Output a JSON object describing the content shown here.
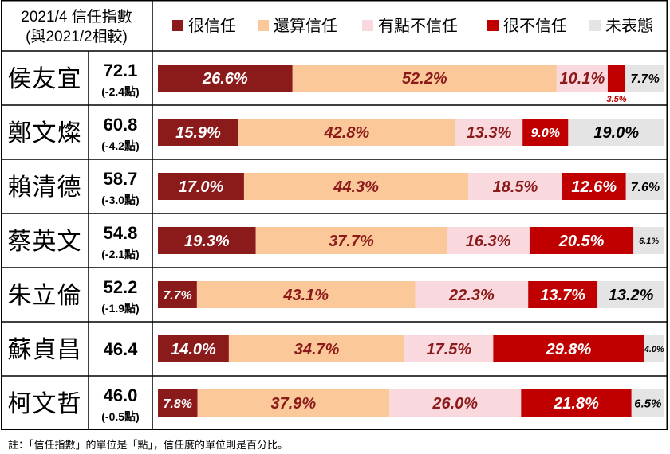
{
  "chart_data": {
    "type": "bar",
    "stacked": "100%",
    "orientation": "horizontal",
    "header": {
      "title_line1": "2021/4 信任指數",
      "title_line2": "(與2021/2相較)"
    },
    "legend": [
      {
        "name": "很信任",
        "color": "#8b1a1a"
      },
      {
        "name": "還算信任",
        "color": "#fbc999"
      },
      {
        "name": "有點不信任",
        "color": "#f9d9dd"
      },
      {
        "name": "很不信任",
        "color": "#c00000"
      },
      {
        "name": "未表態",
        "color": "#e4e4e4"
      }
    ],
    "legend_position": "top",
    "categories": [
      "侯友宜",
      "鄭文燦",
      "賴清德",
      "蔡英文",
      "朱立倫",
      "蘇貞昌",
      "柯文哲"
    ],
    "trust_index": [
      {
        "value": "72.1",
        "change": "(-2.4點)"
      },
      {
        "value": "60.8",
        "change": "(-4.2點)"
      },
      {
        "value": "58.7",
        "change": "(-3.0點)"
      },
      {
        "value": "54.8",
        "change": "(-2.1點)"
      },
      {
        "value": "52.2",
        "change": "(-1.9點)"
      },
      {
        "value": "46.4",
        "change": ""
      },
      {
        "value": "46.0",
        "change": "(-0.5點)"
      }
    ],
    "series": [
      {
        "name": "很信任",
        "values": [
          26.6,
          15.9,
          17.0,
          19.3,
          7.7,
          14.0,
          7.8
        ],
        "labels": [
          "26.6%",
          "15.9%",
          "17.0%",
          "19.3%",
          "7.7%",
          "14.0%",
          "7.8%"
        ]
      },
      {
        "name": "還算信任",
        "values": [
          52.2,
          42.8,
          44.3,
          37.7,
          43.1,
          34.7,
          37.9
        ],
        "labels": [
          "52.2%",
          "42.8%",
          "44.3%",
          "37.7%",
          "43.1%",
          "34.7%",
          "37.9%"
        ]
      },
      {
        "name": "有點不信任",
        "values": [
          10.1,
          13.3,
          18.5,
          16.3,
          22.3,
          17.5,
          26.0
        ],
        "labels": [
          "10.1%",
          "13.3%",
          "18.5%",
          "16.3%",
          "22.3%",
          "17.5%",
          "26.0%"
        ]
      },
      {
        "name": "很不信任",
        "values": [
          3.5,
          9.0,
          12.6,
          20.5,
          13.7,
          29.8,
          21.8
        ],
        "labels": [
          "3.5%",
          "9.0%",
          "12.6%",
          "20.5%",
          "13.7%",
          "29.8%",
          "21.8%"
        ]
      },
      {
        "name": "未表態",
        "values": [
          7.7,
          19.0,
          7.6,
          6.1,
          13.2,
          4.0,
          6.5
        ],
        "labels": [
          "7.7%",
          "19.0%",
          "7.6%",
          "6.1%",
          "13.2%",
          "4.0%",
          "6.5%"
        ]
      }
    ],
    "xlim": [
      0,
      100
    ],
    "grid": false
  },
  "footnote": "註：「信任指數」的單位是「點」，信任度的單位則是百分比。"
}
